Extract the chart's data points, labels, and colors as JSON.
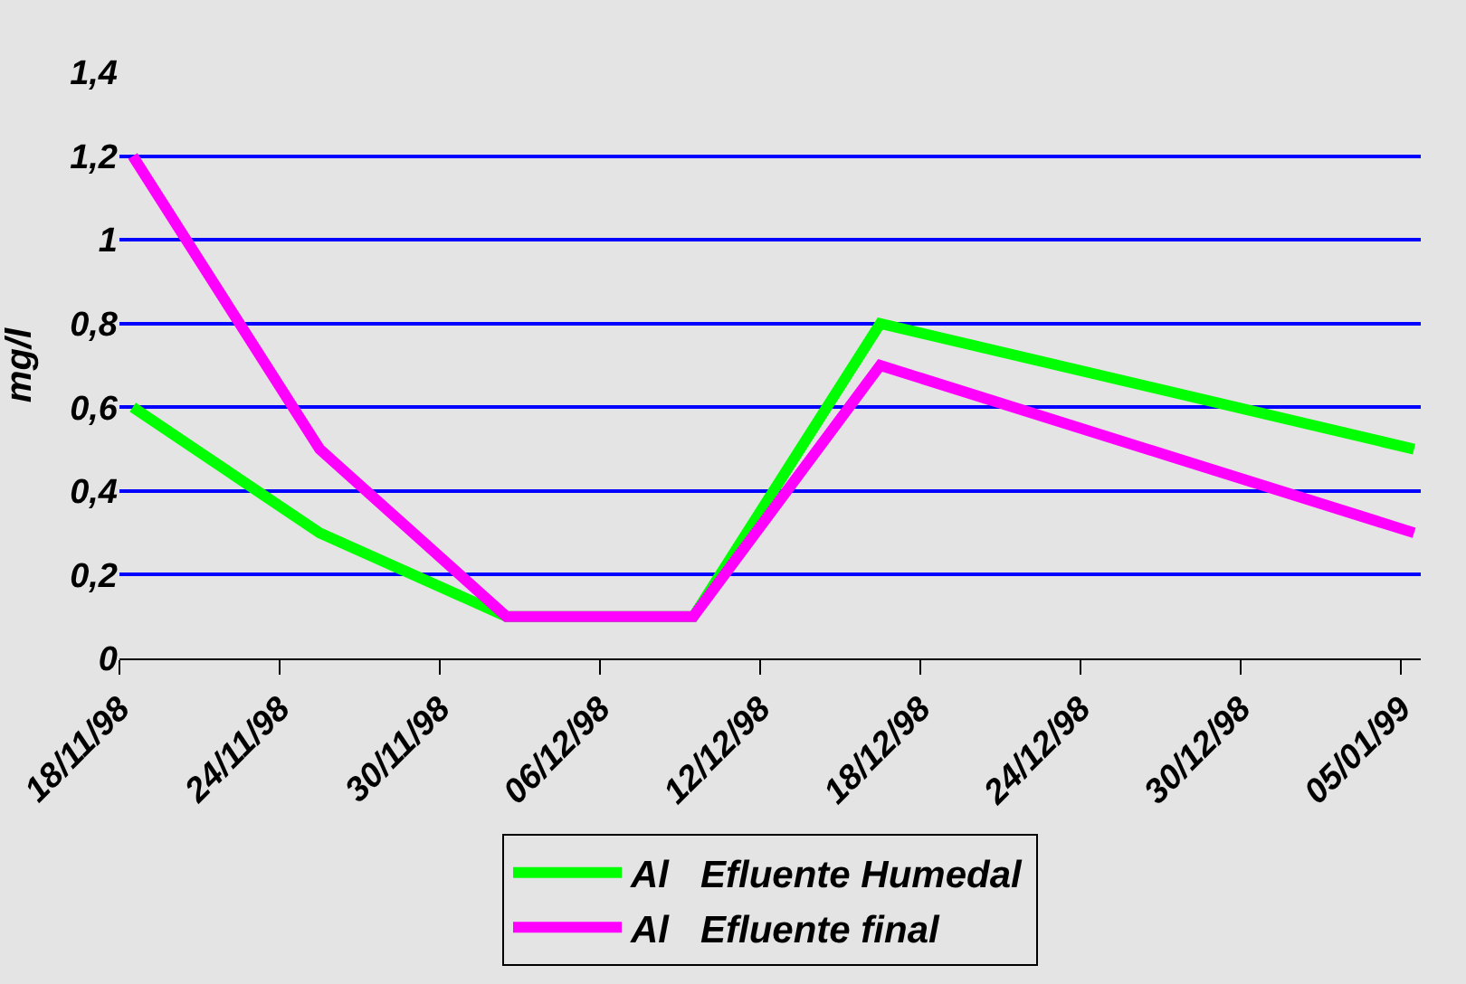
{
  "chart_data": {
    "type": "line",
    "ylabel": "mg/l",
    "x": [
      "1998-11-18T12:00",
      "1998-11-25T12:00",
      "1998-12-02T12:00",
      "1998-12-09T12:00",
      "1998-12-16T12:00",
      "1999-01-05T12:00"
    ],
    "series": [
      {
        "name": "Al   Efluente Humedal",
        "color": "#00ff00",
        "values": [
          0.6,
          0.3,
          0.1,
          0.1,
          0.8,
          0.5
        ]
      },
      {
        "name": "Al   Efluente final",
        "color": "#ff00ff",
        "values": [
          1.2,
          0.5,
          0.1,
          0.1,
          0.7,
          0.3
        ]
      }
    ],
    "xlim": [
      "1998-11-18",
      "1999-01-05T18:00"
    ],
    "xticks": [
      {
        "value": "1998-11-18",
        "label": "18/11/98"
      },
      {
        "value": "1998-11-24",
        "label": "24/11/98"
      },
      {
        "value": "1998-11-30",
        "label": "30/11/98"
      },
      {
        "value": "1998-12-06",
        "label": "06/12/98"
      },
      {
        "value": "1998-12-12",
        "label": "12/12/98"
      },
      {
        "value": "1998-12-18",
        "label": "18/12/98"
      },
      {
        "value": "1998-12-24",
        "label": "24/12/98"
      },
      {
        "value": "1998-12-30",
        "label": "30/12/98"
      },
      {
        "value": "1999-01-05",
        "label": "05/01/99"
      }
    ],
    "ylim": [
      0,
      1.4
    ],
    "yticks": [
      0,
      {
        "value": 0.2,
        "label": "0,2"
      },
      {
        "value": 0.4,
        "label": "0,4"
      },
      {
        "value": 0.6,
        "label": "0,6"
      },
      {
        "value": 0.8,
        "label": "0,8"
      },
      1,
      {
        "value": 1.2,
        "label": "1,2"
      },
      {
        "value": 1.4,
        "label": "1,4"
      }
    ],
    "grid": "y",
    "legend": "bottom",
    "marker": "none",
    "line_style": "solid"
  }
}
